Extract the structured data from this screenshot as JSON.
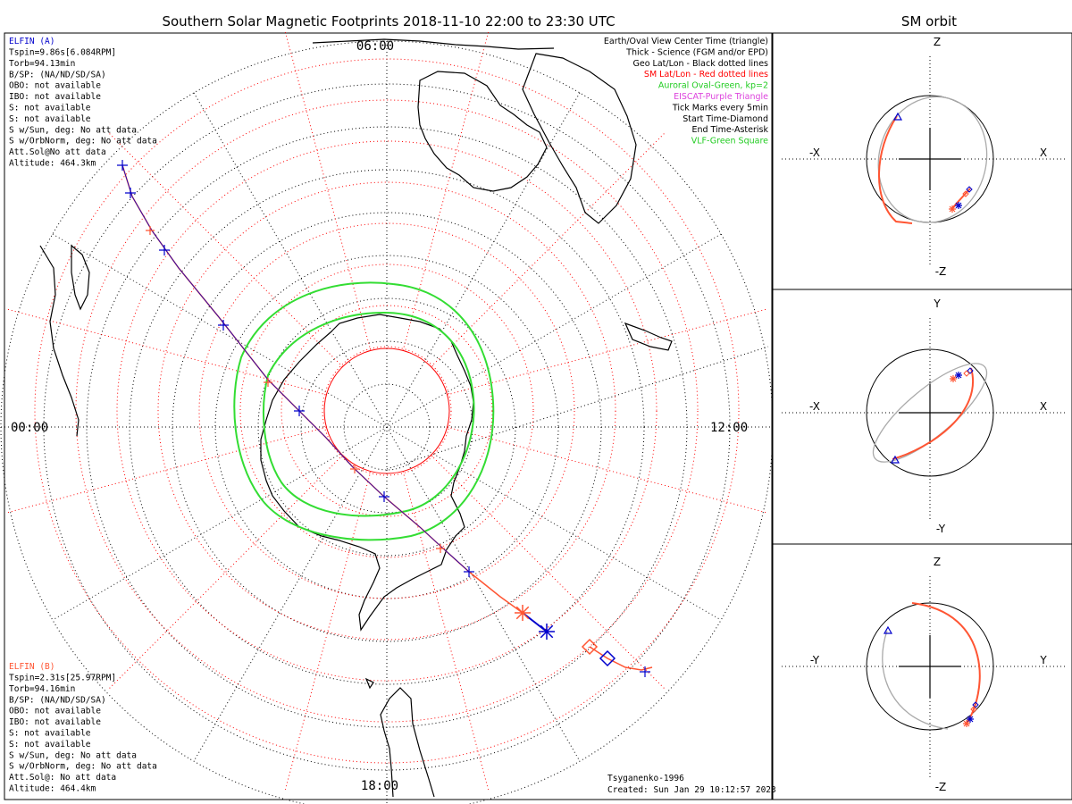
{
  "title": "Southern Solar Magnetic Footprints 2018-11-10 22:00 to 23:30 UTC",
  "orbit_title": "SM orbit",
  "elfin_a": {
    "name": "ELFIN (A)",
    "lines": [
      "Tspin=9.86s[6.084RPM]",
      "Torb=94.13min",
      "B/SP: (NA/ND/SD/SA)",
      "OBO: not available",
      "IBO: not available",
      "S: not available",
      "S: not available",
      "S w/Sun, deg: No att data",
      "S w/OrbNorm, deg: No att data",
      "Att.Sol@No att data",
      "Altitude: 464.3km"
    ]
  },
  "elfin_b": {
    "name": "ELFIN (B)",
    "lines": [
      "Tspin=2.31s[25.97RPM]",
      "Torb=94.16min",
      "B/SP: (NA/ND/SD/SA)",
      "OBO: not available",
      "IBO: not available",
      "S: not available",
      "S: not available",
      "S w/Sun, deg: No att data",
      "S w/OrbNorm, deg: No att data",
      "Att.Sol@: No att data",
      "Altitude: 464.4km"
    ]
  },
  "legend": [
    {
      "text": "Earth/Oval View Center Time (triangle)",
      "color": "#000000"
    },
    {
      "text": "Thick - Science (FGM and/or EPD)",
      "color": "#000000"
    },
    {
      "text": "Geo Lat/Lon - Black dotted lines",
      "color": "#000000"
    },
    {
      "text": "SM Lat/Lon - Red dotted lines",
      "color": "#ff0000"
    },
    {
      "text": "Auroral Oval-Green, kp=2",
      "color": "#22cc22"
    },
    {
      "text": "EISCAT-Purple Triangle",
      "color": "#dd44dd"
    },
    {
      "text": "Tick Marks every 5min",
      "color": "#000000"
    },
    {
      "text": "Start Time-Diamond",
      "color": "#000000"
    },
    {
      "text": "End Time-Asterisk",
      "color": "#000000"
    },
    {
      "text": "VLF-Green Square",
      "color": "#22cc22"
    }
  ],
  "mlt_labels": {
    "top": "06:00",
    "left": "00:00",
    "right": "12:00",
    "bottom": "18:00"
  },
  "footer": {
    "model": "Tsyganenko-1996",
    "created": "Created: Sun Jan 29 10:12:57 2023"
  },
  "panels": [
    {
      "h_neg": "-X",
      "h_pos": "X",
      "v_pos": "Z",
      "v_neg": "-Z"
    },
    {
      "h_neg": "-X",
      "h_pos": "X",
      "v_pos": "Y",
      "v_neg": "-Y"
    },
    {
      "h_neg": "-Y",
      "h_pos": "Y",
      "v_pos": "Z",
      "v_neg": "-Z"
    }
  ],
  "colors": {
    "elfin_a": "#0000cc",
    "elfin_b": "#ff5533",
    "oval": "#33dd33",
    "sm_grid": "#ff0000",
    "geo_grid": "#000000",
    "orbit_gray": "#aaaaaa"
  }
}
